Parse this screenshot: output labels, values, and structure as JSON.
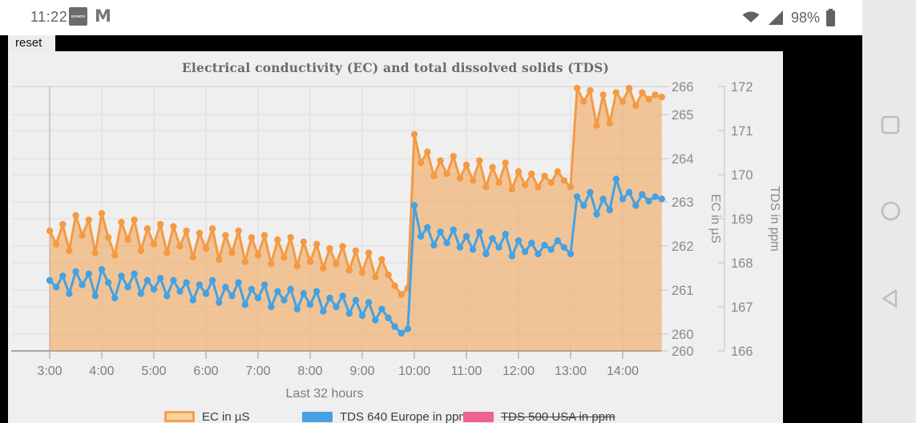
{
  "status_bar": {
    "time": "11:22",
    "battery_percent": "98%",
    "sonos_label": "SONOS",
    "left_icons": [
      "sonos-icon",
      "gmail-icon"
    ],
    "right_icons": [
      "wifi-icon",
      "cell-signal-icon",
      "battery-icon"
    ]
  },
  "action_bar": {
    "reset_label": "reset"
  },
  "nav_bar": {
    "icons": [
      "recents-square-icon",
      "home-circle-icon",
      "back-triangle-icon"
    ]
  },
  "chart_data": {
    "type": "line",
    "title": "Electrical conductivity (EC) and total dissolved solids (TDS)",
    "x_axis": {
      "label": "Last 32 hours",
      "tick_labels": [
        "3:00",
        "4:00",
        "5:00",
        "6:00",
        "7:00",
        "8:00",
        "9:00",
        "10:00",
        "11:00",
        "12:00",
        "13:00",
        "14:00"
      ]
    },
    "y_axes": [
      {
        "id": "ec",
        "label": "EC in µS",
        "tick_labels": [
          "266",
          "265",
          "264",
          "263",
          "262",
          "261",
          "260",
          "260"
        ],
        "range": [
          260,
          266
        ]
      },
      {
        "id": "tds",
        "label": "TDS in ppm",
        "tick_labels": [
          "172",
          "171",
          "170",
          "169",
          "168",
          "167",
          "166"
        ],
        "range": [
          166,
          172
        ]
      }
    ],
    "series": [
      {
        "name": "EC in µS",
        "axis": "ec",
        "color": "#f49a42",
        "area": true,
        "area_opacity": 0.5,
        "start_hour": 3.0,
        "step_hours": 0.125,
        "values": [
          262.35,
          262.05,
          262.5,
          261.9,
          262.7,
          262.25,
          262.6,
          261.85,
          262.75,
          262.2,
          261.8,
          262.55,
          262.15,
          262.6,
          261.9,
          262.4,
          262.05,
          262.5,
          261.85,
          262.45,
          262.0,
          262.35,
          261.75,
          262.3,
          261.95,
          262.4,
          261.7,
          262.25,
          261.85,
          262.35,
          261.65,
          262.2,
          261.8,
          262.25,
          261.6,
          262.15,
          261.75,
          262.2,
          261.55,
          262.1,
          261.65,
          262.05,
          261.5,
          261.95,
          261.6,
          262.0,
          261.45,
          261.9,
          261.4,
          261.85,
          261.3,
          261.7,
          261.35,
          261.1,
          260.9,
          261.05,
          264.55,
          263.9,
          264.15,
          263.6,
          263.95,
          263.65,
          264.05,
          263.55,
          263.85,
          263.5,
          263.95,
          263.35,
          263.8,
          263.45,
          263.9,
          263.3,
          263.7,
          263.4,
          263.65,
          263.35,
          263.6,
          263.45,
          263.7,
          263.5,
          263.35,
          265.6,
          265.3,
          265.55,
          264.75,
          265.45,
          264.8,
          265.5,
          265.3,
          265.6,
          265.2,
          265.5,
          265.35,
          265.45,
          265.4
        ]
      },
      {
        "name": "TDS 640 Europe in ppm",
        "axis": "tds",
        "color": "#45a1e2",
        "area": false,
        "start_hour": 3.0,
        "step_hours": 0.125,
        "values": [
          167.6,
          167.45,
          167.7,
          167.3,
          167.8,
          167.5,
          167.75,
          167.25,
          167.85,
          167.55,
          167.2,
          167.7,
          167.45,
          167.75,
          167.3,
          167.6,
          167.4,
          167.65,
          167.25,
          167.6,
          167.35,
          167.55,
          167.15,
          167.5,
          167.3,
          167.6,
          167.1,
          167.45,
          167.25,
          167.55,
          167.05,
          167.4,
          167.2,
          167.5,
          167.0,
          167.35,
          167.15,
          167.4,
          166.95,
          167.3,
          167.05,
          167.35,
          166.9,
          167.2,
          167.0,
          167.25,
          166.85,
          167.15,
          166.8,
          167.1,
          166.7,
          166.95,
          166.75,
          166.55,
          166.4,
          166.5,
          169.3,
          168.6,
          168.8,
          168.4,
          168.7,
          168.45,
          168.75,
          168.35,
          168.6,
          168.3,
          168.7,
          168.2,
          168.55,
          168.35,
          168.65,
          168.15,
          168.5,
          168.25,
          168.45,
          168.2,
          168.4,
          168.3,
          168.5,
          168.35,
          168.2,
          169.5,
          169.3,
          169.6,
          169.1,
          169.45,
          169.2,
          169.9,
          169.45,
          169.6,
          169.3,
          169.55,
          169.4,
          169.5,
          169.45
        ]
      },
      {
        "name": "TDS 500 USA in ppm",
        "axis": "tds",
        "color": "#f06292",
        "area": false,
        "hidden": true,
        "values": []
      }
    ],
    "legend": {
      "position": "bottom"
    }
  }
}
